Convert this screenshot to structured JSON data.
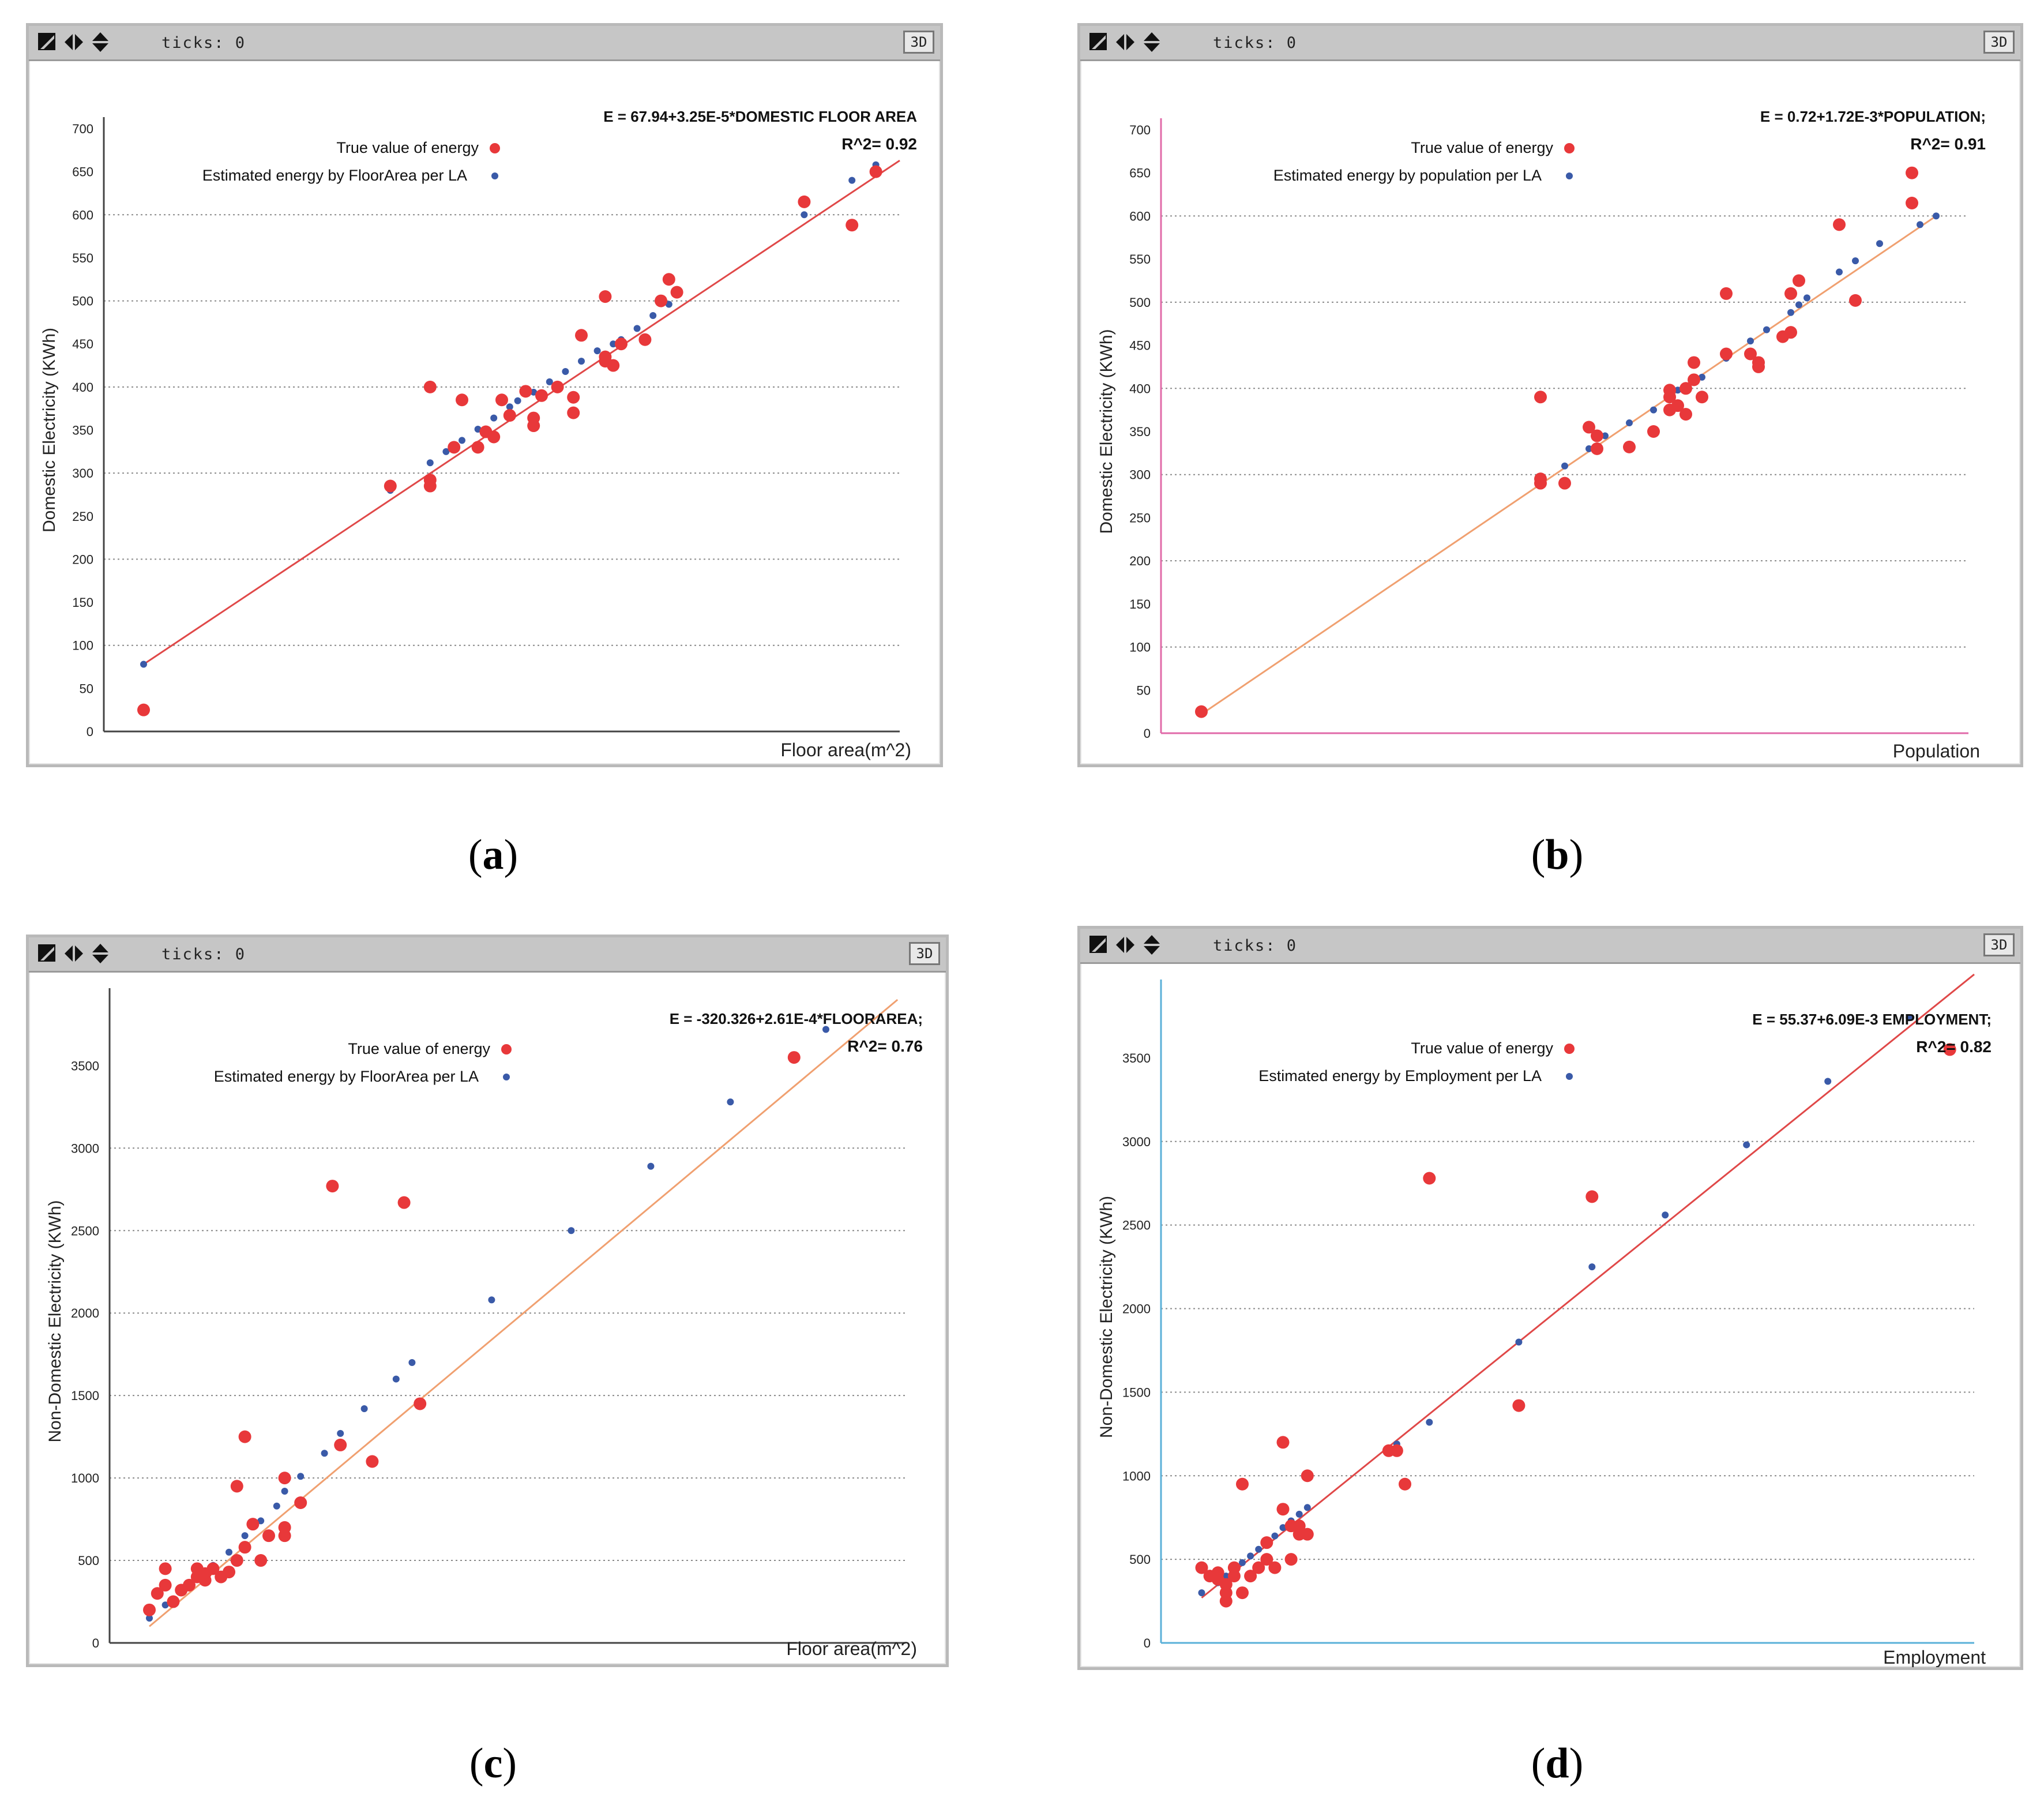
{
  "common": {
    "ticks_label": "ticks: 0",
    "button_3d": "3D",
    "legend_true": "True value of energy",
    "colors": {
      "true_point": "#e8383a",
      "est_point": "#3a5aa8",
      "grid": "#8a8a8a",
      "titlebar": "#c6c6c6"
    }
  },
  "captions": {
    "a": {
      "open": "(",
      "letter": "a",
      "close": ")"
    },
    "b": {
      "open": "(",
      "letter": "b",
      "close": ")"
    },
    "c": {
      "open": "(",
      "letter": "c",
      "close": ")"
    },
    "d": {
      "open": "(",
      "letter": "d",
      "close": ")"
    }
  },
  "chart_data": [
    {
      "id": "a",
      "type": "scatter",
      "equation": "E = 67.94+3.25E-5*DOMESTIC FLOOR AREA",
      "r2_label": "R^2= 0.92",
      "legend_est": "Estimated energy by FloorArea per LA",
      "xlabel": "Floor area(m^2)",
      "ylabel": "Domestic Electricity  (KWh)",
      "xlim": [
        0,
        100
      ],
      "ylim": [
        0,
        700
      ],
      "yticks": [
        0,
        50,
        100,
        150,
        200,
        250,
        300,
        350,
        400,
        450,
        500,
        550,
        600,
        650,
        700
      ],
      "ytick_labels": [
        "0",
        "50",
        "100",
        "150",
        "200",
        "250",
        "300",
        "350",
        "400",
        "450",
        "500",
        "550",
        "600",
        "650",
        "700"
      ],
      "grid_y": [
        100,
        200,
        300,
        400,
        500,
        600
      ],
      "line_color": "#e04848",
      "axis_color": "#444444",
      "line": [
        [
          5,
          78
        ],
        [
          100,
          663
        ]
      ],
      "true_values": [
        [
          5,
          25
        ],
        [
          36,
          285
        ],
        [
          41,
          285
        ],
        [
          41,
          292
        ],
        [
          41,
          400
        ],
        [
          44,
          330
        ],
        [
          45,
          385
        ],
        [
          47,
          330
        ],
        [
          48,
          348
        ],
        [
          49,
          342
        ],
        [
          50,
          385
        ],
        [
          51,
          367
        ],
        [
          53,
          395
        ],
        [
          54,
          364
        ],
        [
          54,
          355
        ],
        [
          55,
          390
        ],
        [
          57,
          400
        ],
        [
          59,
          388
        ],
        [
          59,
          370
        ],
        [
          60,
          460
        ],
        [
          63,
          505
        ],
        [
          63,
          430
        ],
        [
          63,
          435
        ],
        [
          64,
          425
        ],
        [
          65,
          450
        ],
        [
          68,
          455
        ],
        [
          70,
          500
        ],
        [
          71,
          525
        ],
        [
          72,
          510
        ],
        [
          88,
          615
        ],
        [
          94,
          588
        ],
        [
          97,
          650
        ]
      ],
      "estimated": [
        [
          5,
          78
        ],
        [
          36,
          280
        ],
        [
          41,
          312
        ],
        [
          43,
          325
        ],
        [
          45,
          338
        ],
        [
          47,
          351
        ],
        [
          49,
          364
        ],
        [
          51,
          377
        ],
        [
          52,
          384
        ],
        [
          54,
          394
        ],
        [
          56,
          406
        ],
        [
          58,
          418
        ],
        [
          60,
          430
        ],
        [
          62,
          442
        ],
        [
          64,
          450
        ],
        [
          65,
          455
        ],
        [
          67,
          468
        ],
        [
          69,
          483
        ],
        [
          71,
          496
        ],
        [
          88,
          600
        ],
        [
          94,
          640
        ],
        [
          97,
          658
        ]
      ]
    },
    {
      "id": "b",
      "type": "scatter",
      "equation": "E = 0.72+1.72E-3*POPULATION;",
      "r2_label": "R^2= 0.91",
      "legend_est": "Estimated energy by population per LA",
      "xlabel": "Population",
      "ylabel": "Domestic Electricity  (KWh)",
      "xlim": [
        0,
        100
      ],
      "ylim": [
        0,
        700
      ],
      "yticks": [
        0,
        50,
        100,
        150,
        200,
        250,
        300,
        350,
        400,
        450,
        500,
        550,
        600,
        650,
        700
      ],
      "ytick_labels": [
        "0",
        "50",
        "100",
        "150",
        "200",
        "250",
        "300",
        "350",
        "400",
        "450",
        "500",
        "550",
        "600",
        "650",
        "700"
      ],
      "grid_y": [
        100,
        200,
        300,
        400,
        500,
        600
      ],
      "line_color": "#f0a070",
      "axis_color": "#e06aa8",
      "line": [
        [
          5,
          22
        ],
        [
          96,
          600
        ]
      ],
      "true_values": [
        [
          5,
          25
        ],
        [
          47,
          290
        ],
        [
          47,
          295
        ],
        [
          47,
          390
        ],
        [
          50,
          290
        ],
        [
          53,
          355
        ],
        [
          54,
          330
        ],
        [
          54,
          345
        ],
        [
          58,
          332
        ],
        [
          61,
          350
        ],
        [
          63,
          375
        ],
        [
          63,
          390
        ],
        [
          63,
          398
        ],
        [
          64,
          380
        ],
        [
          65,
          370
        ],
        [
          65,
          400
        ],
        [
          66,
          430
        ],
        [
          66,
          410
        ],
        [
          67,
          390
        ],
        [
          70,
          510
        ],
        [
          70,
          440
        ],
        [
          73,
          440
        ],
        [
          74,
          430
        ],
        [
          74,
          425
        ],
        [
          77,
          460
        ],
        [
          78,
          465
        ],
        [
          78,
          510
        ],
        [
          79,
          525
        ],
        [
          84,
          590
        ],
        [
          86,
          502
        ],
        [
          93,
          615
        ],
        [
          93,
          650
        ]
      ],
      "estimated": [
        [
          5,
          22
        ],
        [
          47,
          290
        ],
        [
          50,
          310
        ],
        [
          53,
          330
        ],
        [
          55,
          345
        ],
        [
          58,
          360
        ],
        [
          61,
          375
        ],
        [
          63,
          390
        ],
        [
          64,
          398
        ],
        [
          66,
          408
        ],
        [
          67,
          413
        ],
        [
          70,
          435
        ],
        [
          73,
          455
        ],
        [
          75,
          468
        ],
        [
          78,
          488
        ],
        [
          79,
          497
        ],
        [
          80,
          505
        ],
        [
          84,
          535
        ],
        [
          86,
          548
        ],
        [
          89,
          568
        ],
        [
          94,
          590
        ],
        [
          96,
          600
        ]
      ]
    },
    {
      "id": "c",
      "type": "scatter",
      "equation": "E = -320.326+2.61E-4*FLOORAREA;",
      "r2_label": "R^2= 0.76",
      "legend_est": "Estimated energy by FloorArea per LA",
      "xlabel": "Floor area(m^2)",
      "ylabel": "Non-Domestic Electricity  (KWh)",
      "xlim": [
        0,
        100
      ],
      "ylim": [
        0,
        3900
      ],
      "yticks": [
        0,
        500,
        1000,
        1500,
        2000,
        2500,
        3000,
        3500
      ],
      "ytick_labels": [
        "0",
        "500",
        "1000",
        "1500",
        "2000",
        "2500",
        "3000",
        "3500"
      ],
      "grid_y": [
        500,
        1000,
        1500,
        2000,
        2500,
        3000
      ],
      "line_color": "#f0a070",
      "axis_color": "#444444",
      "line": [
        [
          5,
          100
        ],
        [
          99,
          3900
        ]
      ],
      "true_values": [
        [
          5,
          200
        ],
        [
          6,
          300
        ],
        [
          7,
          450
        ],
        [
          7,
          350
        ],
        [
          8,
          250
        ],
        [
          9,
          320
        ],
        [
          10,
          350
        ],
        [
          11,
          400
        ],
        [
          11,
          450
        ],
        [
          12,
          380
        ],
        [
          12,
          420
        ],
        [
          13,
          450
        ],
        [
          14,
          400
        ],
        [
          15,
          430
        ],
        [
          16,
          500
        ],
        [
          16,
          950
        ],
        [
          17,
          580
        ],
        [
          17,
          1250
        ],
        [
          18,
          720
        ],
        [
          19,
          500
        ],
        [
          20,
          650
        ],
        [
          22,
          650
        ],
        [
          22,
          700
        ],
        [
          22,
          1000
        ],
        [
          24,
          850
        ],
        [
          28,
          2770
        ],
        [
          29,
          1200
        ],
        [
          33,
          1100
        ],
        [
          37,
          2670
        ],
        [
          39,
          1450
        ],
        [
          86,
          3550
        ]
      ],
      "estimated": [
        [
          5,
          150
        ],
        [
          7,
          230
        ],
        [
          9,
          310
        ],
        [
          11,
          390
        ],
        [
          13,
          470
        ],
        [
          15,
          550
        ],
        [
          17,
          650
        ],
        [
          19,
          740
        ],
        [
          21,
          830
        ],
        [
          22,
          920
        ],
        [
          24,
          1010
        ],
        [
          27,
          1150
        ],
        [
          29,
          1270
        ],
        [
          32,
          1420
        ],
        [
          36,
          1600
        ],
        [
          38,
          1700
        ],
        [
          48,
          2080
        ],
        [
          58,
          2500
        ],
        [
          68,
          2890
        ],
        [
          78,
          3280
        ],
        [
          90,
          3720
        ]
      ]
    },
    {
      "id": "d",
      "type": "scatter",
      "equation": "E = 55.37+6.09E-3 EMPLOYMENT;",
      "r2_label": "R^2= 0.82",
      "legend_est": "Estimated energy by Employment per LA",
      "xlabel": "Employment",
      "ylabel": "Non-Domestic Electricity  (KWh)",
      "xlim": [
        0,
        100
      ],
      "ylim": [
        0,
        3900
      ],
      "yticks": [
        0,
        500,
        1000,
        1500,
        2000,
        2500,
        3000,
        3500
      ],
      "ytick_labels": [
        "0",
        "500",
        "1000",
        "1500",
        "2000",
        "2500",
        "3000",
        "3500"
      ],
      "grid_y": [
        500,
        1000,
        1500,
        2000,
        2500,
        3000
      ],
      "line_color": "#e04848",
      "axis_color": "#5ab0d8",
      "line": [
        [
          5,
          270
        ],
        [
          100,
          4000
        ]
      ],
      "true_values": [
        [
          5,
          450
        ],
        [
          6,
          400
        ],
        [
          7,
          420
        ],
        [
          7,
          380
        ],
        [
          8,
          250
        ],
        [
          8,
          300
        ],
        [
          8,
          350
        ],
        [
          9,
          400
        ],
        [
          9,
          450
        ],
        [
          10,
          300
        ],
        [
          10,
          950
        ],
        [
          11,
          400
        ],
        [
          12,
          450
        ],
        [
          13,
          500
        ],
        [
          13,
          600
        ],
        [
          14,
          450
        ],
        [
          15,
          800
        ],
        [
          15,
          1200
        ],
        [
          16,
          500
        ],
        [
          16,
          700
        ],
        [
          17,
          650
        ],
        [
          17,
          700
        ],
        [
          18,
          650
        ],
        [
          18,
          1000
        ],
        [
          28,
          1150
        ],
        [
          29,
          1150
        ],
        [
          30,
          950
        ],
        [
          33,
          2780
        ],
        [
          44,
          1420
        ],
        [
          53,
          2670
        ],
        [
          97,
          3550
        ]
      ],
      "estimated": [
        [
          5,
          300
        ],
        [
          7,
          360
        ],
        [
          8,
          400
        ],
        [
          9,
          440
        ],
        [
          10,
          480
        ],
        [
          11,
          520
        ],
        [
          12,
          560
        ],
        [
          13,
          600
        ],
        [
          14,
          640
        ],
        [
          15,
          690
        ],
        [
          16,
          730
        ],
        [
          17,
          770
        ],
        [
          18,
          810
        ],
        [
          29,
          1190
        ],
        [
          33,
          1320
        ],
        [
          44,
          1800
        ],
        [
          53,
          2250
        ],
        [
          62,
          2560
        ],
        [
          72,
          2980
        ],
        [
          82,
          3360
        ],
        [
          92,
          3740
        ]
      ]
    }
  ]
}
